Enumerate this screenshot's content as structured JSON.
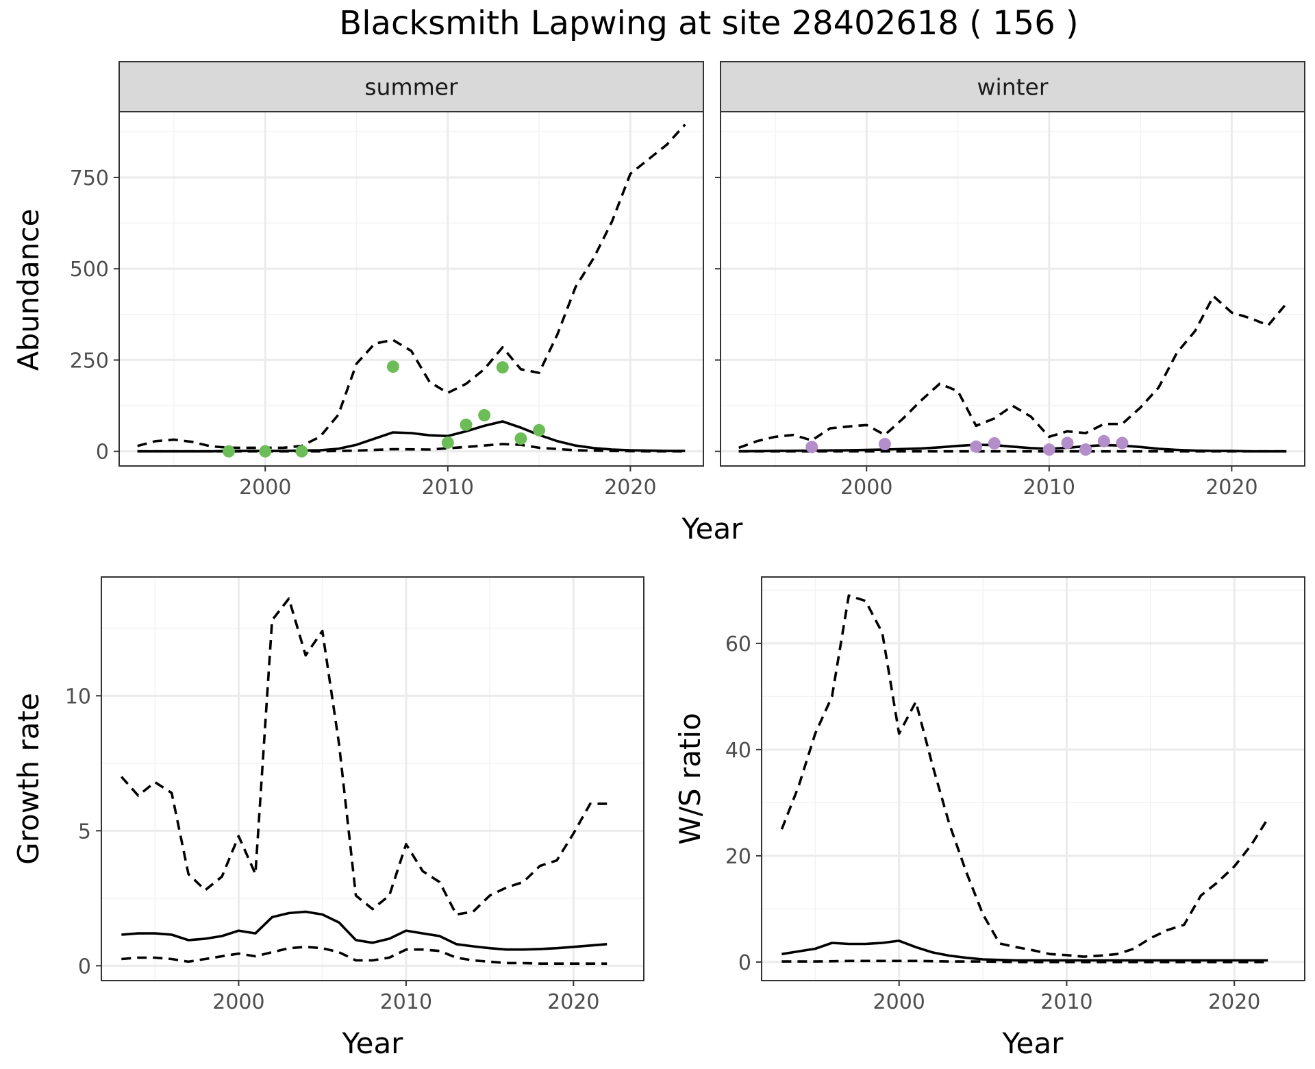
{
  "title": "Blacksmith Lapwing at site 28402618 ( 156 )",
  "colors": {
    "summer_points": "#6cbd58",
    "winter_points": "#b48dcb",
    "lines": "#000000",
    "strip": "#d9d9d9",
    "grid": "#ebebeb"
  },
  "chart_data": [
    {
      "type": "line",
      "panel": "summer",
      "strip_label": "summer",
      "xlabel": "Year",
      "ylabel": "Abundance",
      "xlim": [
        1992,
        2024
      ],
      "ylim": [
        -40,
        930
      ],
      "x_ticks": [
        2000,
        2010,
        2020
      ],
      "y_ticks": [
        0,
        250,
        500,
        750
      ],
      "x_tick_labels": [
        "2000",
        "2010",
        "2020"
      ],
      "y_tick_labels": [
        "0",
        "250",
        "500",
        "750"
      ],
      "series": [
        {
          "style": "solid",
          "x": [
            1993,
            1994,
            1995,
            1996,
            1997,
            1998,
            1999,
            2000,
            2001,
            2002,
            2003,
            2004,
            2005,
            2006,
            2007,
            2008,
            2009,
            2010,
            2011,
            2012,
            2013,
            2014,
            2015,
            2016,
            2017,
            2018,
            2019,
            2020,
            2021,
            2022,
            2023
          ],
          "y": [
            0,
            0,
            0,
            0,
            0,
            1,
            1,
            1,
            1,
            2,
            3,
            7,
            18,
            35,
            52,
            50,
            44,
            42,
            55,
            70,
            82,
            65,
            45,
            28,
            16,
            9,
            5,
            3,
            2,
            1,
            1
          ]
        },
        {
          "style": "dashed",
          "x": [
            1993,
            1994,
            1995,
            1996,
            1997,
            1998,
            1999,
            2000,
            2001,
            2002,
            2003,
            2004,
            2005,
            2006,
            2007,
            2008,
            2009,
            2010,
            2011,
            2012,
            2013,
            2014,
            2015,
            2016,
            2017,
            2018,
            2019,
            2020,
            2021,
            2022,
            2023
          ],
          "y": [
            15,
            28,
            32,
            26,
            14,
            10,
            10,
            10,
            10,
            15,
            40,
            100,
            240,
            295,
            305,
            275,
            190,
            160,
            185,
            225,
            285,
            225,
            215,
            320,
            450,
            530,
            630,
            760,
            800,
            840,
            895
          ]
        },
        {
          "style": "dashed",
          "x": [
            1993,
            1995,
            1997,
            1999,
            2001,
            2003,
            2005,
            2007,
            2009,
            2011,
            2013,
            2014,
            2015,
            2017,
            2019,
            2021,
            2023
          ],
          "y": [
            0,
            0,
            0,
            0,
            0,
            0,
            2,
            6,
            5,
            12,
            20,
            18,
            10,
            3,
            1,
            0,
            0
          ]
        }
      ],
      "points": {
        "x": [
          1998,
          2000,
          2002,
          2007,
          2010,
          2011,
          2012,
          2013,
          2014,
          2015
        ],
        "y": [
          0,
          0,
          0,
          232,
          24,
          73,
          99,
          230,
          35,
          58
        ]
      }
    },
    {
      "type": "line",
      "panel": "winter",
      "strip_label": "winter",
      "xlabel": "Year",
      "xlim": [
        1992,
        2024
      ],
      "ylim": [
        -40,
        930
      ],
      "x_ticks": [
        2000,
        2010,
        2020
      ],
      "x_tick_labels": [
        "2000",
        "2010",
        "2020"
      ],
      "series": [
        {
          "style": "solid",
          "x": [
            1993,
            1995,
            1997,
            1999,
            2001,
            2003,
            2004,
            2005,
            2006,
            2007,
            2008,
            2009,
            2010,
            2011,
            2012,
            2013,
            2014,
            2015,
            2016,
            2017,
            2018,
            2019,
            2020,
            2021,
            2022,
            2023
          ],
          "y": [
            0,
            1,
            2,
            3,
            5,
            8,
            11,
            15,
            18,
            17,
            13,
            9,
            7,
            10,
            14,
            17,
            16,
            12,
            7,
            4,
            2,
            1,
            1,
            0,
            0,
            0
          ]
        },
        {
          "style": "dashed",
          "x": [
            1993,
            1994,
            1995,
            1996,
            1997,
            1998,
            1999,
            2000,
            2001,
            2002,
            2003,
            2004,
            2005,
            2006,
            2007,
            2008,
            2009,
            2010,
            2011,
            2012,
            2013,
            2014,
            2015,
            2016,
            2017,
            2018,
            2019,
            2020,
            2021,
            2022,
            2023
          ],
          "y": [
            10,
            28,
            40,
            45,
            30,
            63,
            68,
            72,
            45,
            90,
            140,
            185,
            165,
            70,
            90,
            125,
            95,
            40,
            55,
            50,
            75,
            75,
            120,
            175,
            270,
            330,
            425,
            380,
            365,
            345,
            405
          ]
        },
        {
          "style": "dashed",
          "x": [
            1993,
            1995,
            1997,
            1999,
            2001,
            2003,
            2005,
            2007,
            2009,
            2011,
            2013,
            2015,
            2017,
            2019,
            2021,
            2023
          ],
          "y": [
            0,
            0,
            0,
            0,
            0,
            0,
            0,
            0,
            0,
            0,
            0,
            0,
            0,
            0,
            0,
            0
          ]
        }
      ],
      "points": {
        "x": [
          1997,
          2001,
          2006,
          2007,
          2010,
          2011,
          2012,
          2013,
          2014
        ],
        "y": [
          12,
          20,
          13,
          22,
          5,
          23,
          5,
          28,
          23
        ]
      }
    },
    {
      "type": "line",
      "panel": "growth",
      "xlabel": "Year",
      "ylabel": "Growth rate",
      "xlim": [
        1991.8,
        2024.2
      ],
      "ylim": [
        -0.55,
        14.4
      ],
      "x_ticks": [
        2000,
        2010,
        2020
      ],
      "y_ticks": [
        0,
        5,
        10
      ],
      "x_tick_labels": [
        "2000",
        "2010",
        "2020"
      ],
      "y_tick_labels": [
        "0",
        "5",
        "10"
      ],
      "series": [
        {
          "style": "solid",
          "x": [
            1993,
            1994,
            1995,
            1996,
            1997,
            1998,
            1999,
            2000,
            2001,
            2002,
            2003,
            2004,
            2005,
            2006,
            2007,
            2008,
            2009,
            2010,
            2011,
            2012,
            2013,
            2014,
            2015,
            2016,
            2017,
            2018,
            2019,
            2020,
            2021,
            2022
          ],
          "y": [
            1.15,
            1.2,
            1.2,
            1.15,
            0.95,
            1.0,
            1.1,
            1.3,
            1.2,
            1.8,
            1.95,
            2.0,
            1.9,
            1.6,
            0.95,
            0.85,
            1.0,
            1.3,
            1.2,
            1.1,
            0.8,
            0.72,
            0.65,
            0.6,
            0.6,
            0.62,
            0.65,
            0.7,
            0.75,
            0.8
          ]
        },
        {
          "style": "dashed",
          "x": [
            1993,
            1994,
            1995,
            1996,
            1997,
            1998,
            1999,
            2000,
            2001,
            2002,
            2003,
            2004,
            2005,
            2006,
            2007,
            2008,
            2009,
            2010,
            2011,
            2012,
            2013,
            2014,
            2015,
            2016,
            2017,
            2018,
            2019,
            2020,
            2021,
            2022
          ],
          "y": [
            7.0,
            6.3,
            6.8,
            6.4,
            3.4,
            2.8,
            3.3,
            4.8,
            3.4,
            12.8,
            13.6,
            11.5,
            12.4,
            8.2,
            2.6,
            2.1,
            2.6,
            4.5,
            3.5,
            3.1,
            1.9,
            2.0,
            2.6,
            2.9,
            3.1,
            3.7,
            3.9,
            4.9,
            6.0,
            6.0
          ]
        },
        {
          "style": "dashed",
          "x": [
            1993,
            1994,
            1995,
            1996,
            1997,
            1998,
            1999,
            2000,
            2001,
            2002,
            2003,
            2004,
            2005,
            2006,
            2007,
            2008,
            2009,
            2010,
            2011,
            2012,
            2013,
            2014,
            2015,
            2016,
            2017,
            2018,
            2019,
            2020,
            2021,
            2022
          ],
          "y": [
            0.25,
            0.3,
            0.3,
            0.25,
            0.15,
            0.25,
            0.35,
            0.45,
            0.35,
            0.5,
            0.65,
            0.7,
            0.65,
            0.5,
            0.2,
            0.2,
            0.3,
            0.6,
            0.6,
            0.55,
            0.3,
            0.2,
            0.15,
            0.1,
            0.1,
            0.08,
            0.08,
            0.08,
            0.08,
            0.08
          ]
        }
      ]
    },
    {
      "type": "line",
      "panel": "ws_ratio",
      "xlabel": "Year",
      "ylabel": "W/S ratio",
      "xlim": [
        1991.8,
        2024.2
      ],
      "ylim": [
        -3.5,
        72.5
      ],
      "x_ticks": [
        2000,
        2010,
        2020
      ],
      "y_ticks": [
        0,
        20,
        40,
        60
      ],
      "x_tick_labels": [
        "2000",
        "2010",
        "2020"
      ],
      "y_tick_labels": [
        "0",
        "20",
        "40",
        "60"
      ],
      "series": [
        {
          "style": "solid",
          "x": [
            1993,
            1994,
            1995,
            1996,
            1997,
            1998,
            1999,
            2000,
            2001,
            2002,
            2003,
            2004,
            2005,
            2006,
            2007,
            2008,
            2009,
            2010,
            2012,
            2014,
            2016,
            2018,
            2020,
            2022
          ],
          "y": [
            1.5,
            2.0,
            2.5,
            3.6,
            3.4,
            3.4,
            3.6,
            4.0,
            2.8,
            1.8,
            1.2,
            0.8,
            0.5,
            0.4,
            0.3,
            0.3,
            0.3,
            0.3,
            0.3,
            0.3,
            0.3,
            0.3,
            0.3,
            0.3
          ]
        },
        {
          "style": "dashed",
          "x": [
            1993,
            1994,
            1995,
            1996,
            1997,
            1998,
            1999,
            2000,
            2001,
            2002,
            2003,
            2004,
            2005,
            2006,
            2007,
            2008,
            2009,
            2010,
            2011,
            2012,
            2013,
            2014,
            2015,
            2016,
            2017,
            2018,
            2019,
            2020,
            2021,
            2022
          ],
          "y": [
            25,
            33,
            43,
            50,
            69,
            68,
            62,
            43,
            49,
            37,
            26,
            17,
            9,
            3.5,
            2.8,
            2.2,
            1.5,
            1.3,
            1.0,
            1.2,
            1.5,
            2.5,
            4.5,
            6,
            7,
            12.5,
            15,
            18,
            22,
            27
          ]
        },
        {
          "style": "dashed",
          "x": [
            1993,
            1995,
            1997,
            1999,
            2000,
            2001,
            2003,
            2005,
            2007,
            2009,
            2011,
            2013,
            2015,
            2017,
            2019,
            2021,
            2022
          ],
          "y": [
            0.1,
            0.1,
            0.2,
            0.2,
            0.2,
            0.2,
            0.1,
            0.1,
            0,
            0,
            0,
            0,
            0,
            0,
            0,
            0,
            0
          ]
        }
      ]
    }
  ]
}
